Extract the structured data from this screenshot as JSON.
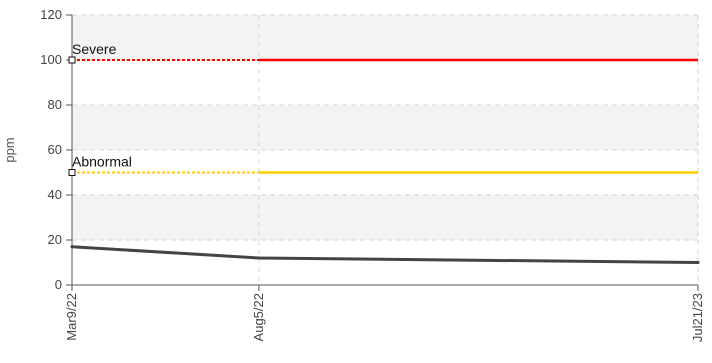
{
  "chart_data": {
    "type": "line",
    "title": "",
    "xlabel": "",
    "ylabel": "ppm",
    "ylim": [
      0,
      120
    ],
    "yticks": [
      0,
      20,
      40,
      60,
      80,
      100,
      120
    ],
    "x_tick_labels": [
      "Mar9/22",
      "Aug5/22",
      "Jul21/23"
    ],
    "x_tick_dates": [
      "2022-03-09",
      "2022-08-05",
      "2023-07-21"
    ],
    "x_range": [
      "2022-03-09",
      "2023-07-21"
    ],
    "grid": true,
    "series": [
      {
        "x": [
          "2022-03-09",
          "2022-08-05",
          "2023-07-21"
        ],
        "y": [
          17,
          12,
          10
        ],
        "color": "#444444"
      }
    ],
    "thresholds": [
      {
        "label": "Severe",
        "value": 100,
        "color": "#ff0000"
      },
      {
        "label": "Abnormal",
        "value": 50,
        "color": "#ffcc00"
      }
    ],
    "colors": {
      "band": "#f3f3f3",
      "grid": "#d6d6d6",
      "axis": "#555555"
    }
  }
}
